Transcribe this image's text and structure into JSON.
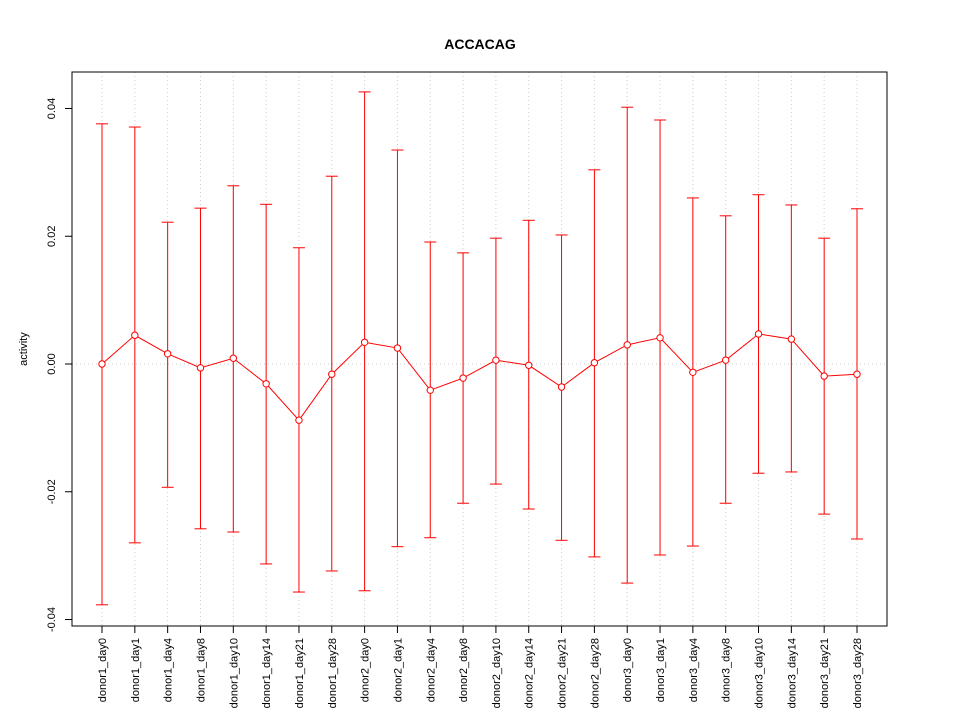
{
  "chart_data": {
    "type": "line",
    "title": "ACCACAG",
    "xlabel": "",
    "ylabel": "activity",
    "ylim": [
      -0.042,
      0.046
    ],
    "yticks": [
      -0.04,
      -0.02,
      0.0,
      0.02,
      0.04
    ],
    "ytick_labels": [
      "-0.04",
      "-0.02",
      "0.00",
      "0.02",
      "0.04"
    ],
    "grid": "vertical dotted at each category, horizontal dotted at 0",
    "series_color": "#ff0000",
    "categories": [
      "donor1_day0",
      "donor1_day1",
      "donor1_day4",
      "donor1_day8",
      "donor1_day10",
      "donor1_day14",
      "donor1_day21",
      "donor1_day28",
      "donor2_day0",
      "donor2_day1",
      "donor2_day4",
      "donor2_day8",
      "donor2_day10",
      "donor2_day14",
      "donor2_day21",
      "donor2_day28",
      "donor3_day0",
      "donor3_day1",
      "donor3_day4",
      "donor3_day8",
      "donor3_day10",
      "donor3_day14",
      "donor3_day21",
      "donor3_day28"
    ],
    "values": [
      0.0,
      0.0045,
      0.0016,
      -0.0006,
      0.0009,
      -0.0031,
      -0.0088,
      -0.0016,
      0.0034,
      0.0025,
      -0.0041,
      -0.0022,
      0.0006,
      -0.0002,
      -0.0036,
      0.0002,
      0.003,
      0.0041,
      -0.0013,
      0.0006,
      0.0047,
      0.0039,
      -0.0019,
      -0.0016
    ],
    "upper": [
      0.0376,
      0.0371,
      0.0222,
      0.0244,
      0.0279,
      0.025,
      0.0182,
      0.0294,
      0.0426,
      0.0335,
      0.0191,
      0.0174,
      0.0197,
      0.0225,
      0.0202,
      0.0304,
      0.0402,
      0.0382,
      0.026,
      0.0232,
      0.0265,
      0.0249,
      0.0197,
      0.0243
    ],
    "lower": [
      -0.0377,
      -0.028,
      -0.0193,
      -0.0258,
      -0.0263,
      -0.0313,
      -0.0357,
      -0.0324,
      -0.0355,
      -0.0286,
      -0.0272,
      -0.0218,
      -0.0188,
      -0.0227,
      -0.0276,
      -0.0302,
      -0.0343,
      -0.0299,
      -0.0285,
      -0.0218,
      -0.0171,
      -0.0169,
      -0.0235,
      -0.0274
    ]
  }
}
